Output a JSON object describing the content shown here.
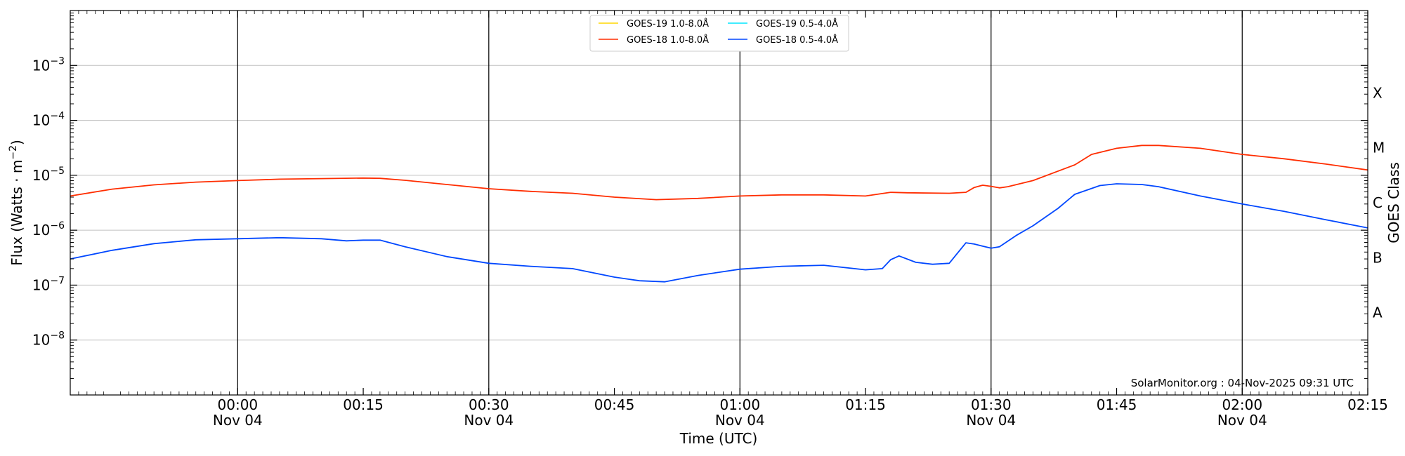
{
  "chart_data": {
    "type": "line",
    "title": "",
    "xlabel": "Time (UTC)",
    "ylabel_main": "Flux (Watts · m",
    "ylabel_exp": "−2",
    "ylabel_end": ")",
    "ylabel_right": "GOES Class",
    "y_scale": "log",
    "ylim": [
      1e-09,
      0.01
    ],
    "xlim": [
      "2025-11-03 23:40",
      "2025-11-04 02:15"
    ],
    "grid": "horizontal at decades",
    "legend_placement": "top-center",
    "credit": "SolarMonitor.org : 04-Nov-2025 09:31 UTC",
    "y_ticks": [
      {
        "value": 0.001,
        "base": "10",
        "exp": "−3"
      },
      {
        "value": 0.0001,
        "base": "10",
        "exp": "−4"
      },
      {
        "value": 1e-05,
        "base": "10",
        "exp": "−5"
      },
      {
        "value": 1e-06,
        "base": "10",
        "exp": "−6"
      },
      {
        "value": 1e-07,
        "base": "10",
        "exp": "−7"
      },
      {
        "value": 1e-08,
        "base": "10",
        "exp": "−8"
      }
    ],
    "x_ticks": [
      {
        "time": "00:00",
        "label": "00:00",
        "date": "Nov 04"
      },
      {
        "time": "00:15",
        "label": "00:15",
        "date": ""
      },
      {
        "time": "00:30",
        "label": "00:30",
        "date": "Nov 04"
      },
      {
        "time": "00:45",
        "label": "00:45",
        "date": ""
      },
      {
        "time": "01:00",
        "label": "01:00",
        "date": "Nov 04"
      },
      {
        "time": "01:15",
        "label": "01:15",
        "date": ""
      },
      {
        "time": "01:30",
        "label": "01:30",
        "date": "Nov 04"
      },
      {
        "time": "01:45",
        "label": "01:45",
        "date": ""
      },
      {
        "time": "02:00",
        "label": "02:00",
        "date": "Nov 04"
      },
      {
        "time": "02:15",
        "label": "02:15",
        "date": ""
      }
    ],
    "vertical_lines": [
      "00:00",
      "00:30",
      "01:00",
      "01:30",
      "02:00"
    ],
    "goes_classes": [
      {
        "label": "X",
        "value": 0.000316
      },
      {
        "label": "M",
        "value": 3.16e-05
      },
      {
        "label": "C",
        "value": 3.16e-06
      },
      {
        "label": "B",
        "value": 3.16e-07
      },
      {
        "label": "A",
        "value": 3.16e-08
      }
    ],
    "series": [
      {
        "name": "GOES-19 1.0-8.0Å",
        "color": "#ffd700",
        "points": []
      },
      {
        "name": "GOES-19 0.5-4.0Å",
        "color": "#00e5ff",
        "points": []
      },
      {
        "name": "GOES-18 1.0-8.0Å",
        "color": "#ff2d00",
        "points": [
          [
            "23:40",
            4.2e-06
          ],
          [
            "23:45",
            5.6e-06
          ],
          [
            "23:50",
            6.7e-06
          ],
          [
            "23:55",
            7.5e-06
          ],
          [
            "00:00",
            8e-06
          ],
          [
            "00:05",
            8.5e-06
          ],
          [
            "00:10",
            8.7e-06
          ],
          [
            "00:15",
            8.9e-06
          ],
          [
            "00:17",
            8.8e-06
          ],
          [
            "00:20",
            8.1e-06
          ],
          [
            "00:25",
            6.8e-06
          ],
          [
            "00:30",
            5.7e-06
          ],
          [
            "00:35",
            5.1e-06
          ],
          [
            "00:40",
            4.7e-06
          ],
          [
            "00:45",
            4e-06
          ],
          [
            "00:50",
            3.6e-06
          ],
          [
            "00:55",
            3.8e-06
          ],
          [
            "01:00",
            4.2e-06
          ],
          [
            "01:05",
            4.4e-06
          ],
          [
            "01:10",
            4.4e-06
          ],
          [
            "01:15",
            4.2e-06
          ],
          [
            "01:18",
            4.9e-06
          ],
          [
            "01:20",
            4.8e-06
          ],
          [
            "01:25",
            4.7e-06
          ],
          [
            "01:27",
            4.9e-06
          ],
          [
            "01:28",
            6e-06
          ],
          [
            "01:29",
            6.6e-06
          ],
          [
            "01:30",
            6.3e-06
          ],
          [
            "01:31",
            5.9e-06
          ],
          [
            "01:32",
            6.2e-06
          ],
          [
            "01:35",
            8e-06
          ],
          [
            "01:40",
            1.55e-05
          ],
          [
            "01:42",
            2.4e-05
          ],
          [
            "01:45",
            3.1e-05
          ],
          [
            "01:48",
            3.5e-05
          ],
          [
            "01:50",
            3.5e-05
          ],
          [
            "01:55",
            3.1e-05
          ],
          [
            "02:00",
            2.4e-05
          ],
          [
            "02:05",
            2e-05
          ],
          [
            "02:10",
            1.6e-05
          ],
          [
            "02:15",
            1.25e-05
          ]
        ]
      },
      {
        "name": "GOES-18 0.5-4.0Å",
        "color": "#0047ff",
        "points": [
          [
            "23:40",
            3e-07
          ],
          [
            "23:45",
            4.3e-07
          ],
          [
            "23:50",
            5.7e-07
          ],
          [
            "23:55",
            6.7e-07
          ],
          [
            "00:00",
            7e-07
          ],
          [
            "00:05",
            7.3e-07
          ],
          [
            "00:10",
            7e-07
          ],
          [
            "00:13",
            6.4e-07
          ],
          [
            "00:15",
            6.6e-07
          ],
          [
            "00:17",
            6.6e-07
          ],
          [
            "00:20",
            5e-07
          ],
          [
            "00:25",
            3.3e-07
          ],
          [
            "00:30",
            2.5e-07
          ],
          [
            "00:35",
            2.2e-07
          ],
          [
            "00:40",
            2e-07
          ],
          [
            "00:45",
            1.4e-07
          ],
          [
            "00:48",
            1.2e-07
          ],
          [
            "00:51",
            1.15e-07
          ],
          [
            "00:55",
            1.5e-07
          ],
          [
            "01:00",
            1.95e-07
          ],
          [
            "01:05",
            2.2e-07
          ],
          [
            "01:10",
            2.3e-07
          ],
          [
            "01:15",
            1.9e-07
          ],
          [
            "01:17",
            2e-07
          ],
          [
            "01:18",
            2.9e-07
          ],
          [
            "01:19",
            3.4e-07
          ],
          [
            "01:21",
            2.6e-07
          ],
          [
            "01:23",
            2.4e-07
          ],
          [
            "01:25",
            2.5e-07
          ],
          [
            "01:27",
            5.9e-07
          ],
          [
            "01:28",
            5.6e-07
          ],
          [
            "01:30",
            4.7e-07
          ],
          [
            "01:31",
            5e-07
          ],
          [
            "01:33",
            8e-07
          ],
          [
            "01:35",
            1.2e-06
          ],
          [
            "01:38",
            2.5e-06
          ],
          [
            "01:40",
            4.5e-06
          ],
          [
            "01:43",
            6.5e-06
          ],
          [
            "01:45",
            7e-06
          ],
          [
            "01:48",
            6.8e-06
          ],
          [
            "01:50",
            6.2e-06
          ],
          [
            "01:55",
            4.2e-06
          ],
          [
            "02:00",
            3e-06
          ],
          [
            "02:05",
            2.2e-06
          ],
          [
            "02:10",
            1.55e-06
          ],
          [
            "02:15",
            1.1e-06
          ]
        ]
      }
    ]
  }
}
